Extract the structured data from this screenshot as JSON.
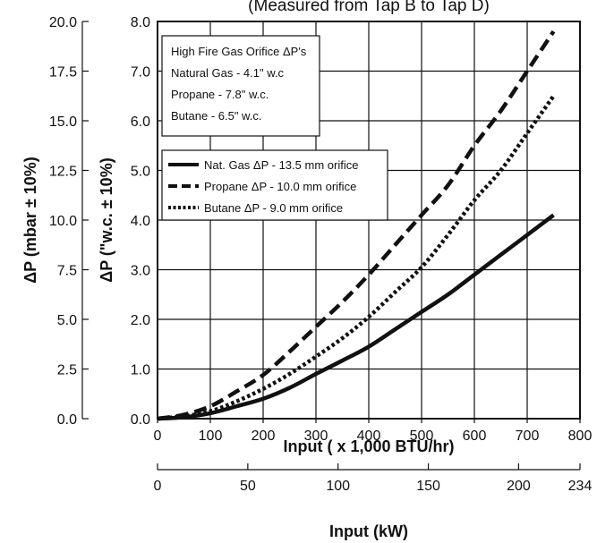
{
  "chart_data": {
    "type": "line",
    "title": "(Measured from Tap B to Tap D)",
    "xlabel": "Input  ( x 1,000 BTU/hr)",
    "xlim": [
      0,
      800
    ],
    "x_ticks": [
      "0",
      "100",
      "200",
      "300",
      "400",
      "500",
      "600",
      "700",
      "800"
    ],
    "ylabel": "ΔP (\"w.c. ± 10%)",
    "ylim": [
      0,
      8
    ],
    "y_ticks": [
      "0.0",
      "1.0",
      "2.0",
      "3.0",
      "4.0",
      "5.0",
      "6.0",
      "7.0",
      "8.0"
    ],
    "ylabel_secondary": "ΔP (mbar ± 10%)",
    "ylim_secondary": [
      0,
      20
    ],
    "y_ticks_secondary": [
      "0.0",
      "2.5",
      "5.0",
      "7.5",
      "10.0",
      "12.5",
      "15.0",
      "17.5",
      "20.0"
    ],
    "xlabel_secondary": "Input  (kW)",
    "xlim_secondary": [
      0,
      234
    ],
    "x_ticks_secondary": [
      "0",
      "50",
      "100",
      "150",
      "200",
      "234"
    ],
    "grid": true,
    "info_box": {
      "heading": "High Fire Gas Orifice ΔP's",
      "lines": [
        "Natural Gas - 4.1\" w.c",
        "Propane - 7.8\" w.c.",
        "Butane - 6.5\" w.c."
      ]
    },
    "legend_position": "upper-left",
    "series": [
      {
        "name": "Nat. Gas ΔP - 13.5 mm orifice",
        "style": "solid",
        "color": "#111111",
        "x": [
          0,
          50,
          100,
          150,
          200,
          250,
          300,
          350,
          400,
          450,
          500,
          550,
          600,
          650,
          700,
          750
        ],
        "y": [
          0.0,
          0.03,
          0.11,
          0.25,
          0.4,
          0.62,
          0.9,
          1.17,
          1.45,
          1.8,
          2.15,
          2.5,
          2.9,
          3.3,
          3.7,
          4.1
        ]
      },
      {
        "name": "Propane ΔP - 10.0 mm orifice",
        "style": "dashed",
        "color": "#111111",
        "x": [
          0,
          50,
          100,
          150,
          200,
          250,
          300,
          350,
          400,
          450,
          500,
          550,
          600,
          650,
          700,
          750
        ],
        "y": [
          0.0,
          0.08,
          0.25,
          0.55,
          0.88,
          1.35,
          1.85,
          2.35,
          2.9,
          3.5,
          4.1,
          4.7,
          5.5,
          6.2,
          7.0,
          7.8
        ]
      },
      {
        "name": "Butane ΔP - 9.0 mm orifice",
        "style": "dotted",
        "color": "#111111",
        "x": [
          0,
          50,
          100,
          150,
          200,
          250,
          300,
          350,
          400,
          450,
          500,
          550,
          600,
          650,
          700,
          750
        ],
        "y": [
          0.0,
          0.05,
          0.15,
          0.35,
          0.6,
          0.9,
          1.25,
          1.62,
          2.05,
          2.55,
          3.05,
          3.7,
          4.4,
          5.0,
          5.75,
          6.5
        ]
      }
    ]
  }
}
